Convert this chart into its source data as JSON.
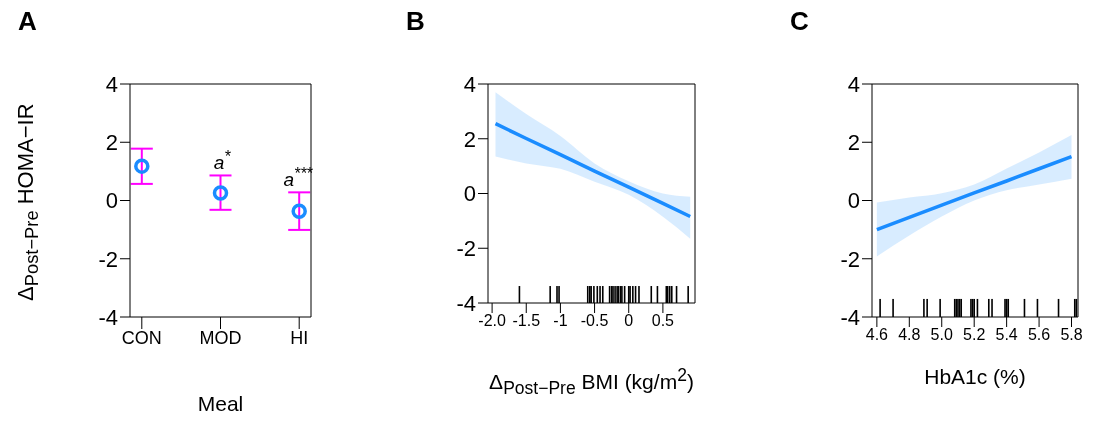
{
  "chart_data": [
    {
      "type": "scatter",
      "title": "A",
      "ylabel": "Δ$_{Post−Pre}$ HOMA−IR",
      "xlabel": "Meal",
      "categories": [
        "CON",
        "MOD",
        "HI"
      ],
      "values": [
        1.18,
        0.26,
        -0.37
      ],
      "errors": [
        [
          0.57,
          1.78
        ],
        [
          -0.32,
          0.86
        ],
        [
          -1.01,
          0.28
        ]
      ],
      "color": "#1a8cff",
      "marker": "circle",
      "ylim": [
        -4,
        4
      ],
      "yticks": [
        -4,
        -2,
        0,
        2,
        4
      ],
      "annotations": [
        "a$^{*}$",
        "a$^{***}$"
      ]
    },
    {
      "type": "line",
      "title": "B",
      "xlabel": "Δ$_{Post−Pre}$ BMI (kg/m$^{2}$)",
      "xlim": [
        -2.06,
        0.97
      ],
      "xticks": [
        {
          "value": -2,
          "label": "-2.0"
        },
        -1.5,
        -1,
        -0.5,
        0,
        0.5
      ],
      "ylim": [
        -4,
        4
      ],
      "yticks": [
        -4,
        -2,
        0,
        2,
        4
      ],
      "series": [
        {
          "color": "#1a8cff",
          "x": [
            -1.95,
            -1.5,
            -1,
            -0.5,
            0,
            0.5,
            0.9
          ],
          "values": [
            2.55,
            2.01,
            1.42,
            0.82,
            0.23,
            -0.36,
            -0.84
          ],
          "lower": [
            1.35,
            1.1,
            0.9,
            0.43,
            -0.05,
            -0.85,
            -1.65
          ],
          "upper": [
            3.7,
            2.9,
            2.1,
            1.1,
            0.45,
            0.0,
            -0.12
          ]
        },
        {
          "type": "bar",
          "color": "#000000",
          "x": [
            -1.6,
            -1.15,
            -1.05,
            -1.02,
            -0.6,
            -0.57,
            -0.55,
            -0.51,
            -0.46,
            -0.42,
            -0.38,
            -0.28,
            -0.25,
            -0.23,
            -0.2,
            -0.17,
            -0.15,
            -0.12,
            -0.1,
            -0.06,
            0,
            0.02,
            0.06,
            0.1,
            0.15,
            0.33,
            0.42,
            0.55,
            0.57,
            0.6,
            0.63,
            0.7,
            0.87
          ],
          "base": [
            -4,
            -4,
            -4,
            -4,
            -4,
            -4,
            -4,
            -4,
            -4,
            -4,
            -4,
            -4,
            -4,
            -4,
            -4,
            -4,
            -4,
            -4,
            -4,
            -4,
            -4,
            -4,
            -4,
            -4,
            -4,
            -4,
            -4,
            -4,
            -4,
            -4,
            -4,
            -4,
            -4
          ],
          "values": [
            0.62,
            0.62,
            0.62,
            0.62,
            0.62,
            0.62,
            0.62,
            0.62,
            0.62,
            0.62,
            0.62,
            0.62,
            0.62,
            0.62,
            0.62,
            0.62,
            0.62,
            0.62,
            0.62,
            0.62,
            0.62,
            0.62,
            0.62,
            0.62,
            0.62,
            0.62,
            0.62,
            0.62,
            0.62,
            0.62,
            0.62,
            0.62,
            0.62
          ]
        }
      ]
    },
    {
      "type": "line",
      "title": "C",
      "xlabel": "HbA1c (%)",
      "xlim": [
        4.57,
        5.84
      ],
      "xticks": [
        4.6,
        4.8,
        {
          "value": 5,
          "label": "5.0"
        },
        5.2,
        5.4,
        5.6,
        5.8
      ],
      "ylim": [
        -4,
        4
      ],
      "yticks": [
        -4,
        -2,
        0,
        2,
        4
      ],
      "series": [
        {
          "color": "#1a8cff",
          "x": [
            4.6,
            4.8,
            5.0,
            5.2,
            5.4,
            5.6,
            5.8
          ],
          "values": [
            -1.0,
            -0.58,
            -0.16,
            0.26,
            0.67,
            1.09,
            1.51
          ],
          "lower": [
            -1.92,
            -1.2,
            -0.55,
            0.0,
            0.35,
            0.55,
            0.75
          ],
          "upper": [
            -0.07,
            0.1,
            0.25,
            0.55,
            1.1,
            1.65,
            2.25
          ]
        },
        {
          "type": "bar",
          "color": "#000000",
          "x": [
            4.62,
            4.7,
            4.89,
            4.91,
            4.99,
            5.08,
            5.09,
            5.1,
            5.11,
            5.12,
            5.18,
            5.19,
            5.2,
            5.22,
            5.29,
            5.31,
            5.39,
            5.4,
            5.41,
            5.51,
            5.59,
            5.72,
            5.82,
            5.83
          ],
          "base": [
            -4,
            -4,
            -4,
            -4,
            -4,
            -4,
            -4,
            -4,
            -4,
            -4,
            -4,
            -4,
            -4,
            -4,
            -4,
            -4,
            -4,
            -4,
            -4,
            -4,
            -4,
            -4,
            -4,
            -4
          ],
          "values": [
            0.62,
            0.62,
            0.62,
            0.62,
            0.62,
            0.62,
            0.62,
            0.62,
            0.62,
            0.62,
            0.62,
            0.62,
            0.62,
            0.62,
            0.62,
            0.62,
            0.62,
            0.62,
            0.62,
            0.62,
            0.62,
            0.62,
            0.62,
            0.62
          ]
        }
      ]
    }
  ]
}
